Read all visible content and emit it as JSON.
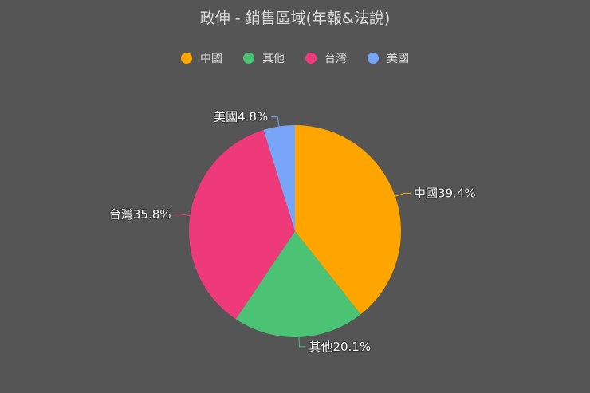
{
  "chart_data": {
    "type": "pie",
    "title": "政伸 - 銷售區域(年報&法說)",
    "categories": [
      "中國",
      "其他",
      "台灣",
      "美國"
    ],
    "values": [
      39.4,
      20.1,
      35.8,
      4.8
    ],
    "labels": [
      "中國39.4%",
      "其他20.1%",
      "台灣35.8%",
      "美國4.8%"
    ],
    "colors": [
      "#FFA500",
      "#4BC274",
      "#EE3A78",
      "#78A5F8"
    ],
    "legend_position": "top",
    "start_angle": "top, clockwise"
  }
}
